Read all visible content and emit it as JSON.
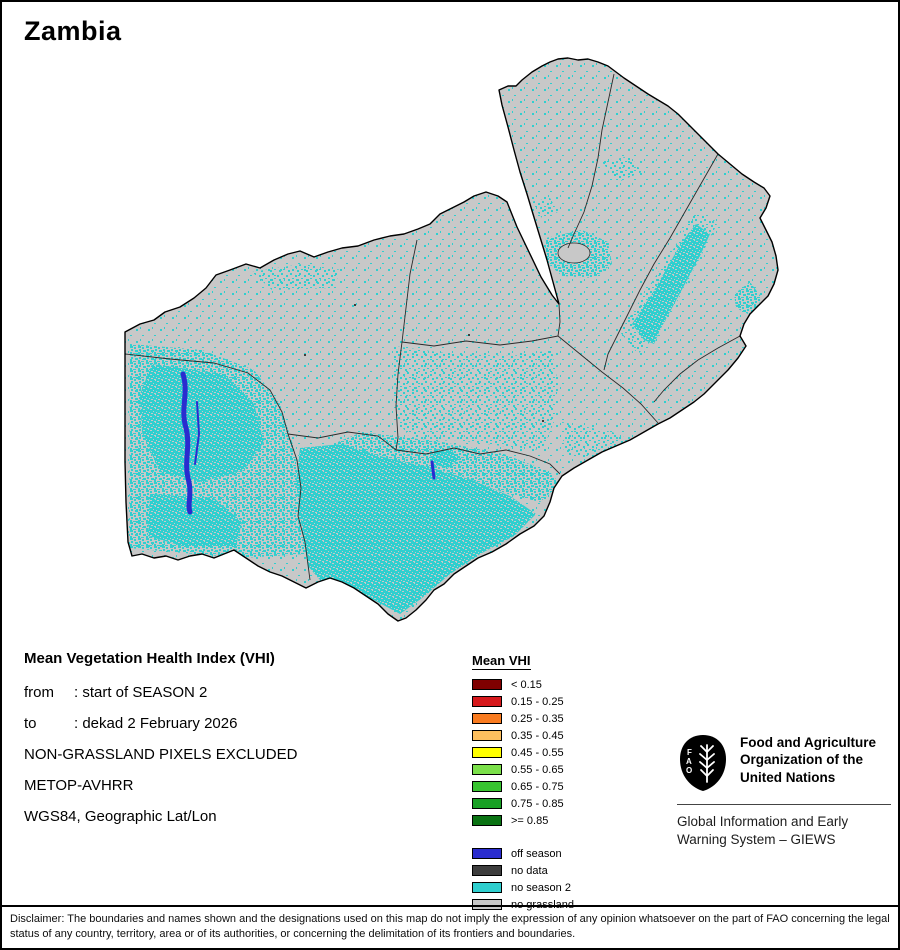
{
  "title": "Zambia",
  "info": {
    "heading": "Mean Vegetation Health Index (VHI)",
    "rows": [
      {
        "label": "from",
        "text": ": start of SEASON 2"
      },
      {
        "label": "to",
        "text": ": dekad 2 February 2026"
      }
    ],
    "lines": [
      "NON-GRASSLAND PIXELS EXCLUDED",
      "METOP-AVHRR",
      "WGS84, Geographic Lat/Lon"
    ]
  },
  "legend": {
    "title": "Mean VHI",
    "classes": [
      {
        "label": "< 0.15",
        "color": "#7f0000"
      },
      {
        "label": "0.15 - 0.25",
        "color": "#d7191c"
      },
      {
        "label": "0.25 - 0.35",
        "color": "#f97b1f"
      },
      {
        "label": "0.35 - 0.45",
        "color": "#fdbf5e"
      },
      {
        "label": "0.45 - 0.55",
        "color": "#ffff00"
      },
      {
        "label": "0.55 - 0.65",
        "color": "#7be04a"
      },
      {
        "label": "0.65 - 0.75",
        "color": "#38c430"
      },
      {
        "label": "0.75 - 0.85",
        "color": "#18a024"
      },
      {
        "label": ">= 0.85",
        "color": "#0a7313"
      }
    ],
    "extra": [
      {
        "label": "off season",
        "color": "#2a2ccf"
      },
      {
        "label": "no data",
        "color": "#3d3d3d"
      },
      {
        "label": "no season 2",
        "color": "#2fcfcf"
      },
      {
        "label": "no grassland",
        "color": "#c8c8c8"
      }
    ]
  },
  "fao": {
    "org": "Food and Agriculture Organization of the United Nations",
    "giews": "Global Information and Early Warning System – GIEWS"
  },
  "map": {
    "region": "Zambia",
    "colors": {
      "land": "#c8c8c8",
      "no_season_2": "#2fcfcf",
      "off_season": "#2a2ccf",
      "no_data": "#3d3d3d",
      "boundary": "#111111"
    }
  },
  "disclaimer": "Disclaimer: The boundaries and names shown and the designations used on this map do not imply the expression of any opinion whatsoever on the part of FAO concerning the legal status of any country, territory, area or of its authorities, or concerning the delimitation of its frontiers and boundaries."
}
